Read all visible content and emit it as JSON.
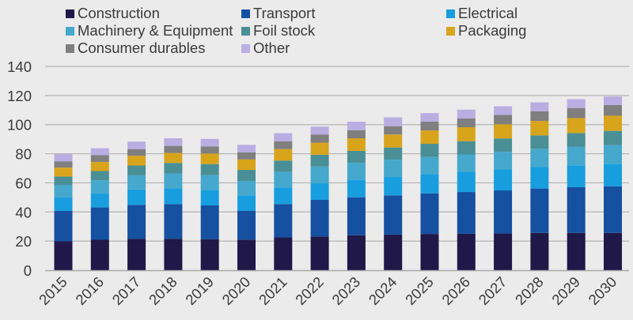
{
  "chart_data": {
    "type": "bar",
    "stacked": true,
    "title": "",
    "xlabel": "",
    "ylabel": "",
    "ylim": [
      0,
      140
    ],
    "yticks": [
      0,
      20,
      40,
      60,
      80,
      100,
      120,
      140
    ],
    "grid": true,
    "legend_position": "top",
    "categories": [
      "2015",
      "2016",
      "2017",
      "2018",
      "2019",
      "2020",
      "2021",
      "2022",
      "2023",
      "2024",
      "2025",
      "2026",
      "2027",
      "2028",
      "2029",
      "2030"
    ],
    "series": [
      {
        "name": "Construction",
        "color": "#1f1848",
        "values": [
          19.8,
          20.9,
          21.6,
          21.6,
          21.3,
          21.0,
          22.5,
          23.2,
          24.0,
          24.5,
          24.9,
          25.0,
          25.2,
          25.6,
          25.6,
          25.6
        ]
      },
      {
        "name": "Transport",
        "color": "#1650a0",
        "values": [
          20.9,
          22.2,
          23.3,
          23.8,
          23.2,
          19.9,
          22.9,
          25.1,
          26.1,
          26.9,
          27.9,
          28.7,
          29.6,
          30.5,
          31.4,
          32.0
        ]
      },
      {
        "name": "Electrical",
        "color": "#189ede",
        "values": [
          9.2,
          9.7,
          10.6,
          10.8,
          10.7,
          10.5,
          11.4,
          11.5,
          12.1,
          12.6,
          13.3,
          13.9,
          14.4,
          14.7,
          15.0,
          15.5
        ]
      },
      {
        "name": "Machinery & Equipment",
        "color": "#45a8cc",
        "values": [
          8.7,
          9.0,
          9.7,
          10.3,
          10.1,
          9.9,
          10.8,
          11.4,
          11.5,
          11.9,
          11.7,
          11.9,
          12.1,
          12.6,
          12.7,
          12.8
        ]
      },
      {
        "name": "Foil stock",
        "color": "#4a8f96",
        "values": [
          5.7,
          6.3,
          6.7,
          7.2,
          7.6,
          7.6,
          7.7,
          8.1,
          8.3,
          8.4,
          9.0,
          9.1,
          9.2,
          9.2,
          9.5,
          9.8
        ]
      },
      {
        "name": "Packaging",
        "color": "#d8a41c",
        "values": [
          6.2,
          6.3,
          6.7,
          6.8,
          7.2,
          7.2,
          7.9,
          8.3,
          8.6,
          8.9,
          9.2,
          9.6,
          9.7,
          9.9,
          10.3,
          10.4
        ]
      },
      {
        "name": "Consumer durables",
        "color": "#7f7f7f",
        "values": [
          4.3,
          4.7,
          4.6,
          4.9,
          4.9,
          4.9,
          5.4,
          5.6,
          5.6,
          5.7,
          6.0,
          6.1,
          6.5,
          6.7,
          6.9,
          7.3
        ]
      },
      {
        "name": "Other",
        "color": "#b8aee2",
        "values": [
          5.0,
          4.7,
          5.1,
          5.2,
          5.2,
          5.1,
          5.5,
          5.4,
          5.8,
          6.1,
          5.9,
          6.0,
          5.9,
          6.1,
          6.1,
          5.9
        ]
      }
    ]
  },
  "style": {
    "gridline_color": "#b4b4b4",
    "axis_line_color": "#a8a8a8",
    "background": "#ebebeb"
  }
}
